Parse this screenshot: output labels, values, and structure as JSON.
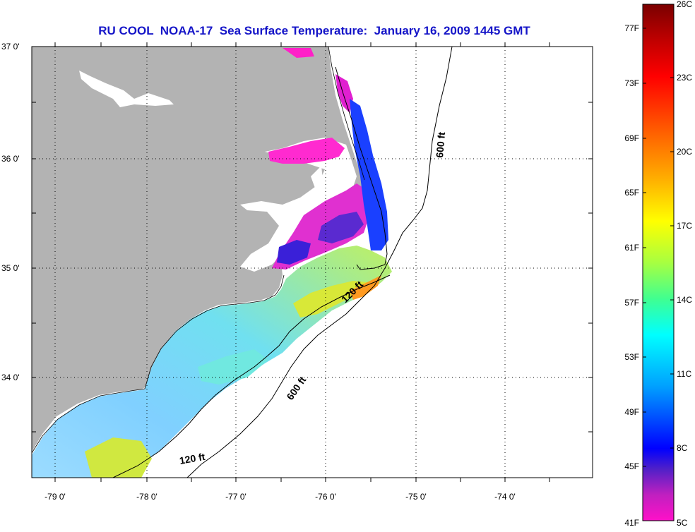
{
  "title": "RU COOL  NOAA-17  Sea Surface Temperature:  January 16, 2009 1445 GMT",
  "lat_labels": [
    "37 0'",
    "36 0'",
    "35 0'",
    "34 0'"
  ],
  "lon_labels": [
    "-79 0'",
    "-78 0'",
    "-77 0'",
    "-76 0'",
    "-75 0'",
    "-74 0'"
  ],
  "contour_labels": {
    "c600_north": "600 ft",
    "c600_south": "600 ft",
    "c120_mid": "120 ft",
    "c120_south": "120 ft"
  },
  "colorbar": {
    "fahrenheit": [
      "77F",
      "73F",
      "69F",
      "65F",
      "61F",
      "57F",
      "53F",
      "49F",
      "45F",
      "41F"
    ],
    "celsius": [
      "26C",
      "23C",
      "20C",
      "17C",
      "14C",
      "11C",
      "8C",
      "5C"
    ]
  },
  "colors": {
    "land": "#b3b3b3",
    "title": "#1515c8",
    "grid": "#000000"
  }
}
